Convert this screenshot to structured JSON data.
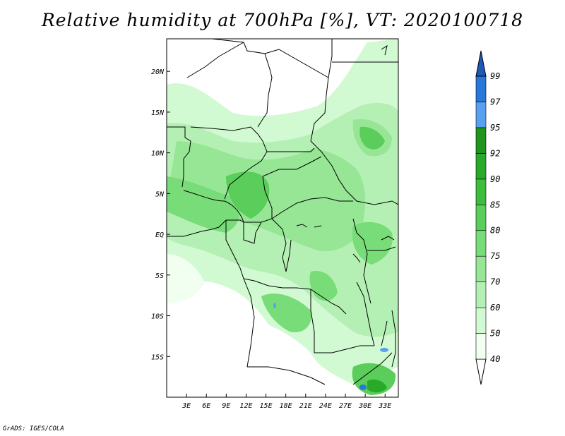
{
  "title": "Relative humidity at 700hPa [%], VT: 2020100718",
  "credit": "GrADS: IGES/COLA",
  "map": {
    "lon_range": [
      0,
      35
    ],
    "lat_range": [
      -20,
      24
    ],
    "lat_ticks": [
      {
        "value": 20,
        "label": "20N"
      },
      {
        "value": 15,
        "label": "15N"
      },
      {
        "value": 10,
        "label": "10N"
      },
      {
        "value": 5,
        "label": "5N"
      },
      {
        "value": 0,
        "label": "EQ"
      },
      {
        "value": -5,
        "label": "5S"
      },
      {
        "value": -10,
        "label": "10S"
      },
      {
        "value": -15,
        "label": "15S"
      }
    ],
    "lon_ticks": [
      {
        "value": 3,
        "label": "3E"
      },
      {
        "value": 6,
        "label": "6E"
      },
      {
        "value": 9,
        "label": "9E"
      },
      {
        "value": 12,
        "label": "12E"
      },
      {
        "value": 15,
        "label": "15E"
      },
      {
        "value": 18,
        "label": "18E"
      },
      {
        "value": 21,
        "label": "21E"
      },
      {
        "value": 24,
        "label": "24E"
      },
      {
        "value": 27,
        "label": "27E"
      },
      {
        "value": 30,
        "label": "30E"
      },
      {
        "value": 33,
        "label": "33E"
      }
    ]
  },
  "colorbar": {
    "levels": [
      "40",
      "50",
      "60",
      "70",
      "75",
      "80",
      "85",
      "90",
      "92",
      "95",
      "97",
      "99"
    ],
    "colors": [
      "#f0fff0",
      "#d2fad2",
      "#b4f0b4",
      "#96e696",
      "#78dc78",
      "#5acd5a",
      "#3cbe3c",
      "#28aa28",
      "#1e961e",
      "#5aa0f0",
      "#2878dc",
      "#1e5ab4"
    ],
    "bottom_color": "#ffffff",
    "top_color": "#1e5ab4"
  }
}
